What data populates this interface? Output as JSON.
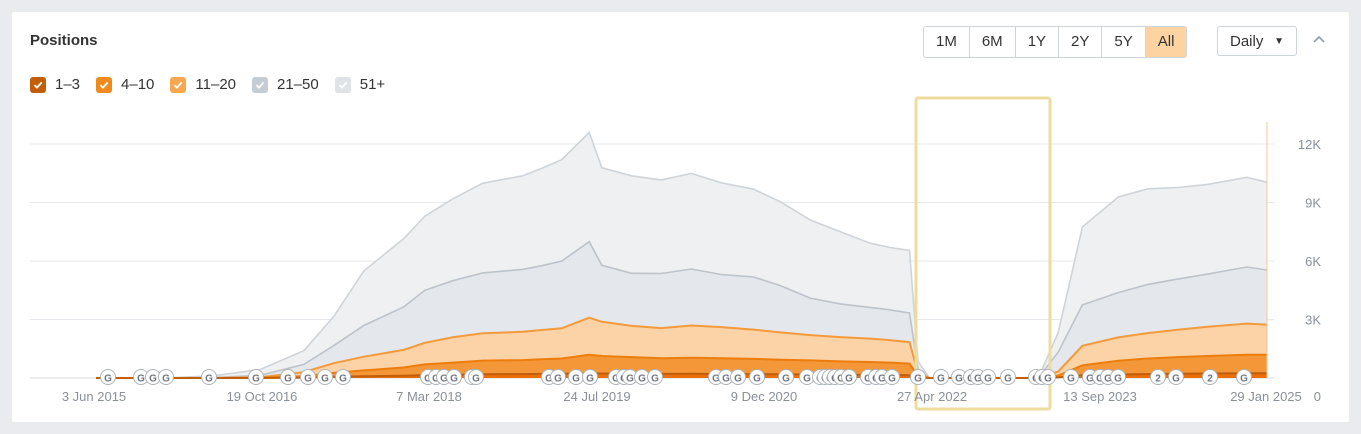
{
  "header": {
    "title": "Positions"
  },
  "range_buttons": [
    {
      "label": "1M",
      "active": false
    },
    {
      "label": "6M",
      "active": false
    },
    {
      "label": "1Y",
      "active": false
    },
    {
      "label": "2Y",
      "active": false
    },
    {
      "label": "5Y",
      "active": false
    },
    {
      "label": "All",
      "active": true
    }
  ],
  "interval_select": {
    "value": "Daily"
  },
  "legend": [
    {
      "label": "1–3",
      "color": "#c25e0a"
    },
    {
      "label": "4–10",
      "color": "#f08a1c"
    },
    {
      "label": "11–20",
      "color": "#f8a64f"
    },
    {
      "label": "21–50",
      "color": "#c6ccd3"
    },
    {
      "label": "51+",
      "color": "#dfe3e7"
    }
  ],
  "chart_data": {
    "type": "area",
    "stacked": true,
    "x_tick_labels": [
      "3 Jun 2015",
      "19 Oct 2016",
      "7 Mar 2018",
      "24 Jul 2019",
      "9 Dec 2020",
      "27 Apr 2022",
      "13 Sep 2023",
      "29 Jan 2025"
    ],
    "y_tick_labels": [
      "0",
      "3K",
      "6K",
      "9K",
      "12K"
    ],
    "ylim": [
      0,
      12000
    ],
    "grid": true,
    "y_axis_side": "right",
    "x": [
      "2015-06-03",
      "2016-01-01",
      "2016-06-01",
      "2016-10-19",
      "2017-03-01",
      "2017-06-01",
      "2017-09-01",
      "2018-01-01",
      "2018-03-07",
      "2018-06-01",
      "2018-09-01",
      "2019-01-01",
      "2019-03-01",
      "2019-05-01",
      "2019-07-24",
      "2019-09-01",
      "2019-12-01",
      "2020-03-01",
      "2020-06-01",
      "2020-09-01",
      "2020-12-09",
      "2021-03-01",
      "2021-06-01",
      "2021-09-01",
      "2021-12-01",
      "2022-02-01",
      "2022-04-01",
      "2022-04-27",
      "2022-06-01",
      "2022-09-01",
      "2022-12-01",
      "2023-03-01",
      "2023-05-01",
      "2023-07-01",
      "2023-09-13",
      "2024-01-01",
      "2024-04-01",
      "2024-07-01",
      "2024-10-01",
      "2025-01-29",
      "2025-04-01"
    ],
    "series": [
      {
        "name": "1–3",
        "color": "#c25e0a",
        "values": [
          0,
          0,
          0,
          0,
          20,
          60,
          90,
          120,
          150,
          170,
          190,
          200,
          210,
          220,
          240,
          230,
          220,
          210,
          220,
          210,
          200,
          190,
          180,
          170,
          170,
          160,
          140,
          20,
          0,
          0,
          0,
          0,
          0,
          30,
          150,
          180,
          200,
          220,
          230,
          240,
          240
        ]
      },
      {
        "name": "4–10",
        "color": "#f08a1c",
        "values": [
          0,
          0,
          0,
          10,
          80,
          200,
          300,
          420,
          550,
          620,
          700,
          720,
          750,
          780,
          950,
          900,
          850,
          800,
          820,
          800,
          780,
          750,
          720,
          680,
          650,
          630,
          600,
          80,
          0,
          0,
          0,
          0,
          0,
          100,
          500,
          700,
          800,
          850,
          900,
          950,
          950
        ]
      },
      {
        "name": "11–20",
        "color": "#f8a64f",
        "values": [
          0,
          0,
          0,
          30,
          200,
          500,
          700,
          900,
          1100,
          1300,
          1400,
          1450,
          1500,
          1550,
          1900,
          1750,
          1600,
          1550,
          1650,
          1600,
          1500,
          1400,
          1300,
          1250,
          1200,
          1150,
          1100,
          150,
          0,
          0,
          0,
          0,
          0,
          200,
          1000,
          1200,
          1300,
          1400,
          1500,
          1600,
          1550
        ]
      },
      {
        "name": "21–50",
        "color": "#c6ccd3",
        "values": [
          0,
          0,
          20,
          100,
          400,
          900,
          1600,
          2200,
          2700,
          2900,
          3100,
          3200,
          3300,
          3450,
          3900,
          2900,
          2700,
          2800,
          2900,
          2700,
          2700,
          2400,
          1900,
          1700,
          1600,
          1550,
          1500,
          200,
          0,
          0,
          0,
          0,
          0,
          1000,
          2100,
          2300,
          2500,
          2600,
          2700,
          2900,
          2800
        ]
      },
      {
        "name": "51+",
        "color": "#dfe3e7",
        "values": [
          0,
          0,
          100,
          300,
          700,
          1500,
          2800,
          3500,
          3800,
          4200,
          4600,
          4800,
          5000,
          5200,
          5600,
          5000,
          5000,
          4800,
          4900,
          4700,
          4500,
          4300,
          4000,
          3700,
          3300,
          3200,
          3200,
          400,
          0,
          0,
          0,
          0,
          0,
          1000,
          4000,
          4900,
          4900,
          4700,
          4600,
          4600,
          4500
        ]
      }
    ],
    "annotation_labels": [
      "2",
      "2"
    ]
  }
}
